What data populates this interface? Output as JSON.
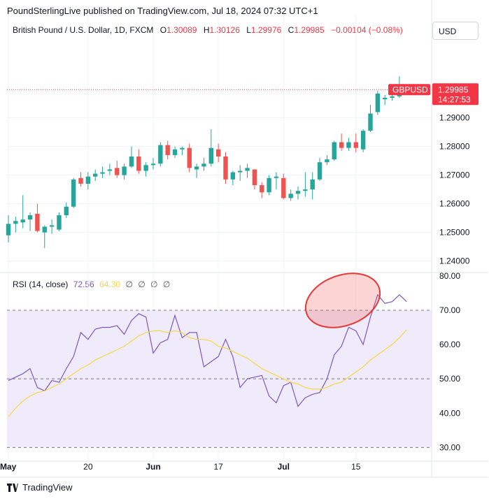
{
  "header": {
    "text": "PoundSterlingLive published on TradingView.com, Jul 18, 2024 07:32 UTC+1"
  },
  "legend": {
    "symbol": "British Pound / U.S. Dollar, 1D, FXCM",
    "o_label": "O",
    "o_value": "1.30089",
    "h_label": "H",
    "h_value": "1.30126",
    "l_label": "L",
    "l_value": "1.29976",
    "c_label": "C",
    "c_value": "1.29985",
    "change": "−0.00104 (−0.08%)"
  },
  "currency_button": "USD",
  "price_tag": {
    "ticker": "GBPUSD",
    "price": "1.29985",
    "countdown": "14:27:53"
  },
  "rsi_legend": {
    "label": "RSI (14, close)",
    "rsi_value": "72.56",
    "ma_value": "64.30",
    "dots": [
      "∅",
      "∅",
      "∅",
      "∅"
    ]
  },
  "footer": {
    "brand": "TradingView"
  },
  "colors": {
    "up": "#26a69a",
    "down": "#ef5350",
    "rsi": "#7e57c2",
    "rsi_ma": "#f5d848",
    "band_fill": "#efebfa",
    "annotation": "#e53935"
  },
  "chart_data": [
    {
      "type": "candlestick",
      "title": "British Pound / U.S. Dollar, 1D, FXCM",
      "ylim": [
        1.2365,
        1.3165
      ],
      "y_ticks": [
        "1.24000",
        "1.25000",
        "1.26000",
        "1.27000",
        "1.28000",
        "1.29000"
      ],
      "x_ticks": [
        {
          "label": "May",
          "index": 0
        },
        {
          "label": "20",
          "index": 11
        },
        {
          "label": "Jun",
          "index": 20
        },
        {
          "label": "17",
          "index": 29
        },
        {
          "label": "Jul",
          "index": 38
        },
        {
          "label": "15",
          "index": 48
        }
      ],
      "last_price_line": 1.29985,
      "candles": [
        {
          "o": 1.249,
          "h": 1.256,
          "l": 1.2465,
          "c": 1.253
        },
        {
          "o": 1.253,
          "h": 1.2555,
          "l": 1.25,
          "c": 1.254
        },
        {
          "o": 1.2535,
          "h": 1.263,
          "l": 1.2515,
          "c": 1.2545
        },
        {
          "o": 1.2545,
          "h": 1.257,
          "l": 1.2505,
          "c": 1.256
        },
        {
          "o": 1.2565,
          "h": 1.26,
          "l": 1.25,
          "c": 1.2505
        },
        {
          "o": 1.25,
          "h": 1.2525,
          "l": 1.2445,
          "c": 1.252
        },
        {
          "o": 1.252,
          "h": 1.2545,
          "l": 1.2495,
          "c": 1.2525
        },
        {
          "o": 1.251,
          "h": 1.257,
          "l": 1.2505,
          "c": 1.256
        },
        {
          "o": 1.256,
          "h": 1.2605,
          "l": 1.255,
          "c": 1.259
        },
        {
          "o": 1.259,
          "h": 1.269,
          "l": 1.2585,
          "c": 1.2685
        },
        {
          "o": 1.269,
          "h": 1.271,
          "l": 1.266,
          "c": 1.267
        },
        {
          "o": 1.267,
          "h": 1.271,
          "l": 1.265,
          "c": 1.2695
        },
        {
          "o": 1.2695,
          "h": 1.272,
          "l": 1.268,
          "c": 1.2705
        },
        {
          "o": 1.2705,
          "h": 1.273,
          "l": 1.269,
          "c": 1.271
        },
        {
          "o": 1.2715,
          "h": 1.274,
          "l": 1.27,
          "c": 1.272
        },
        {
          "o": 1.2725,
          "h": 1.275,
          "l": 1.269,
          "c": 1.27
        },
        {
          "o": 1.27,
          "h": 1.274,
          "l": 1.2685,
          "c": 1.273
        },
        {
          "o": 1.273,
          "h": 1.28,
          "l": 1.2725,
          "c": 1.2765
        },
        {
          "o": 1.2765,
          "h": 1.279,
          "l": 1.2705,
          "c": 1.2715
        },
        {
          "o": 1.2715,
          "h": 1.2745,
          "l": 1.2695,
          "c": 1.2735
        },
        {
          "o": 1.2735,
          "h": 1.276,
          "l": 1.272,
          "c": 1.274
        },
        {
          "o": 1.274,
          "h": 1.2815,
          "l": 1.273,
          "c": 1.2805
        },
        {
          "o": 1.2805,
          "h": 1.282,
          "l": 1.2755,
          "c": 1.277
        },
        {
          "o": 1.277,
          "h": 1.28,
          "l": 1.276,
          "c": 1.279
        },
        {
          "o": 1.279,
          "h": 1.28,
          "l": 1.277,
          "c": 1.2795
        },
        {
          "o": 1.2795,
          "h": 1.281,
          "l": 1.271,
          "c": 1.2725
        },
        {
          "o": 1.272,
          "h": 1.274,
          "l": 1.269,
          "c": 1.273
        },
        {
          "o": 1.273,
          "h": 1.276,
          "l": 1.2715,
          "c": 1.274
        },
        {
          "o": 1.274,
          "h": 1.286,
          "l": 1.273,
          "c": 1.2795
        },
        {
          "o": 1.279,
          "h": 1.281,
          "l": 1.2745,
          "c": 1.2765
        },
        {
          "o": 1.2765,
          "h": 1.278,
          "l": 1.267,
          "c": 1.2685
        },
        {
          "o": 1.2685,
          "h": 1.2715,
          "l": 1.2665,
          "c": 1.271
        },
        {
          "o": 1.271,
          "h": 1.2735,
          "l": 1.268,
          "c": 1.2715
        },
        {
          "o": 1.2715,
          "h": 1.274,
          "l": 1.269,
          "c": 1.2725
        },
        {
          "o": 1.272,
          "h": 1.272,
          "l": 1.265,
          "c": 1.2665
        },
        {
          "o": 1.2665,
          "h": 1.2675,
          "l": 1.262,
          "c": 1.264
        },
        {
          "o": 1.264,
          "h": 1.27,
          "l": 1.263,
          "c": 1.269
        },
        {
          "o": 1.269,
          "h": 1.271,
          "l": 1.265,
          "c": 1.2695
        },
        {
          "o": 1.269,
          "h": 1.2705,
          "l": 1.2615,
          "c": 1.262
        },
        {
          "o": 1.262,
          "h": 1.265,
          "l": 1.261,
          "c": 1.2635
        },
        {
          "o": 1.2635,
          "h": 1.266,
          "l": 1.2615,
          "c": 1.2645
        },
        {
          "o": 1.2645,
          "h": 1.271,
          "l": 1.2625,
          "c": 1.265
        },
        {
          "o": 1.265,
          "h": 1.271,
          "l": 1.2615,
          "c": 1.2685
        },
        {
          "o": 1.2685,
          "h": 1.276,
          "l": 1.268,
          "c": 1.2745
        },
        {
          "o": 1.2745,
          "h": 1.277,
          "l": 1.2735,
          "c": 1.2755
        },
        {
          "o": 1.2755,
          "h": 1.282,
          "l": 1.275,
          "c": 1.2815
        },
        {
          "o": 1.2815,
          "h": 1.2845,
          "l": 1.2785,
          "c": 1.2795
        },
        {
          "o": 1.2795,
          "h": 1.283,
          "l": 1.2785,
          "c": 1.2815
        },
        {
          "o": 1.2815,
          "h": 1.2845,
          "l": 1.278,
          "c": 1.2795
        },
        {
          "o": 1.279,
          "h": 1.286,
          "l": 1.278,
          "c": 1.2855
        },
        {
          "o": 1.2855,
          "h": 1.2945,
          "l": 1.285,
          "c": 1.2915
        },
        {
          "o": 1.292,
          "h": 1.2995,
          "l": 1.291,
          "c": 1.2985
        },
        {
          "o": 1.2965,
          "h": 1.298,
          "l": 1.2945,
          "c": 1.297
        },
        {
          "o": 1.297,
          "h": 1.299,
          "l": 1.296,
          "c": 1.2975
        },
        {
          "o": 1.2975,
          "h": 1.3045,
          "l": 1.297,
          "c": 1.301
        },
        {
          "o": 1.30089,
          "h": 1.30126,
          "l": 1.29976,
          "c": 1.29985
        }
      ]
    },
    {
      "type": "line",
      "title": "RSI (14, close)",
      "ylim": [
        26,
        81
      ],
      "y_ticks": [
        "30.00",
        "40.00",
        "50.00",
        "60.00",
        "70.00",
        "80.00"
      ],
      "bands": [
        30,
        70
      ],
      "midline": 50,
      "series": [
        {
          "name": "RSI",
          "values": [
            49.5,
            50.5,
            51.5,
            53,
            47.5,
            46.5,
            49.5,
            49,
            53,
            56.5,
            63.5,
            61.5,
            64.5,
            65,
            65,
            65.5,
            63,
            67,
            69,
            68,
            57.5,
            60.5,
            61.5,
            68.5,
            62,
            63.5,
            63.5,
            53.5,
            55,
            56.5,
            61.5,
            56.5,
            47.5,
            50,
            50.5,
            51,
            45,
            43,
            48,
            49,
            42,
            44.5,
            45.5,
            46,
            50,
            57,
            59.5,
            65,
            64,
            60,
            68,
            74.5,
            72,
            72.5,
            74.5,
            72.5
          ]
        },
        {
          "name": "RSI-based MA",
          "values": [
            39,
            41.5,
            43.5,
            45,
            46,
            46.5,
            47.5,
            48.5,
            50,
            51.5,
            53,
            54,
            55.5,
            56.5,
            57.5,
            58.5,
            59.5,
            61,
            62.5,
            63.5,
            64,
            64,
            63.5,
            64,
            63.5,
            62,
            61.5,
            61.5,
            61,
            59.5,
            59,
            58,
            57,
            56,
            54.5,
            53,
            52,
            51,
            50,
            49,
            48.5,
            47.5,
            47,
            47,
            47.5,
            48.5,
            49,
            50.5,
            52,
            53.5,
            55.5,
            57,
            58.5,
            60,
            62,
            64.3
          ]
        }
      ]
    }
  ]
}
